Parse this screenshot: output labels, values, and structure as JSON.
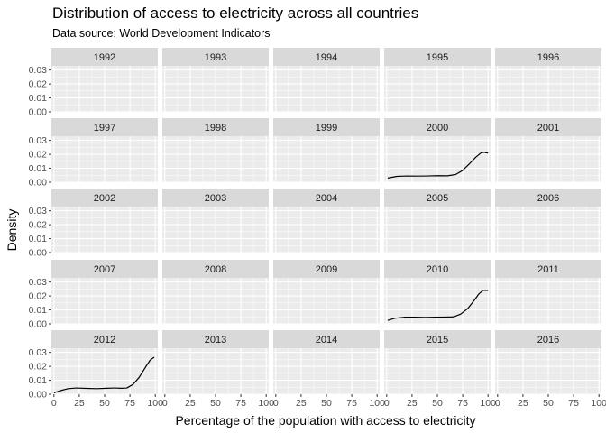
{
  "title": "Distribution of access to electricity across all countries",
  "subtitle": "Data source: World Development Indicators",
  "chart_data": {
    "type": "line",
    "plot_kind": "faceted density",
    "title": "Distribution of access to electricity across all countries",
    "subtitle": "Data source: World Development Indicators",
    "xlabel": "Percentage of the population with access to electricity",
    "ylabel": "Density",
    "xlim": [
      -2.5,
      102.5
    ],
    "ylim": [
      0,
      0.033
    ],
    "x_ticks": [
      0,
      25,
      50,
      75,
      100
    ],
    "y_ticks": [
      0.0,
      0.01,
      0.02,
      0.03
    ],
    "x_tick_labels": [
      "0",
      "25",
      "50",
      "75",
      "100"
    ],
    "y_tick_labels": [
      "0.00",
      "0.01",
      "0.02",
      "0.03"
    ],
    "grid": true,
    "facet_columns": 5,
    "facets": [
      {
        "label": "1992",
        "points": []
      },
      {
        "label": "1993",
        "points": []
      },
      {
        "label": "1994",
        "points": []
      },
      {
        "label": "1995",
        "points": []
      },
      {
        "label": "1996",
        "points": []
      },
      {
        "label": "1997",
        "points": []
      },
      {
        "label": "1998",
        "points": []
      },
      {
        "label": "1999",
        "points": []
      },
      {
        "label": "2000",
        "points": [
          [
            1,
            0.003
          ],
          [
            10,
            0.0042
          ],
          [
            20,
            0.0045
          ],
          [
            30,
            0.0044
          ],
          [
            40,
            0.0045
          ],
          [
            50,
            0.0047
          ],
          [
            60,
            0.0046
          ],
          [
            68,
            0.0055
          ],
          [
            75,
            0.0085
          ],
          [
            82,
            0.0135
          ],
          [
            88,
            0.018
          ],
          [
            93,
            0.021
          ],
          [
            96,
            0.0215
          ],
          [
            100,
            0.0208
          ]
        ]
      },
      {
        "label": "2001",
        "points": []
      },
      {
        "label": "2002",
        "points": []
      },
      {
        "label": "2003",
        "points": []
      },
      {
        "label": "2004",
        "points": []
      },
      {
        "label": "2005",
        "points": []
      },
      {
        "label": "2006",
        "points": []
      },
      {
        "label": "2007",
        "points": []
      },
      {
        "label": "2008",
        "points": []
      },
      {
        "label": "2009",
        "points": []
      },
      {
        "label": "2010",
        "points": [
          [
            1,
            0.0025
          ],
          [
            8,
            0.004
          ],
          [
            18,
            0.0048
          ],
          [
            28,
            0.0048
          ],
          [
            38,
            0.0046
          ],
          [
            48,
            0.0048
          ],
          [
            58,
            0.0049
          ],
          [
            66,
            0.005
          ],
          [
            73,
            0.007
          ],
          [
            80,
            0.011
          ],
          [
            86,
            0.0165
          ],
          [
            91,
            0.0215
          ],
          [
            95,
            0.024
          ],
          [
            100,
            0.024
          ]
        ]
      },
      {
        "label": "2011",
        "points": []
      },
      {
        "label": "2012",
        "points": [
          [
            0,
            0.001
          ],
          [
            6,
            0.0025
          ],
          [
            14,
            0.004
          ],
          [
            22,
            0.0045
          ],
          [
            32,
            0.0042
          ],
          [
            42,
            0.004
          ],
          [
            52,
            0.0043
          ],
          [
            60,
            0.0045
          ],
          [
            66,
            0.0043
          ],
          [
            72,
            0.0045
          ],
          [
            78,
            0.007
          ],
          [
            84,
            0.012
          ],
          [
            90,
            0.019
          ],
          [
            95,
            0.0245
          ],
          [
            99,
            0.0265
          ]
        ]
      },
      {
        "label": "2013",
        "points": []
      },
      {
        "label": "2014",
        "points": []
      },
      {
        "label": "2015",
        "points": []
      },
      {
        "label": "2016",
        "points": []
      }
    ]
  }
}
